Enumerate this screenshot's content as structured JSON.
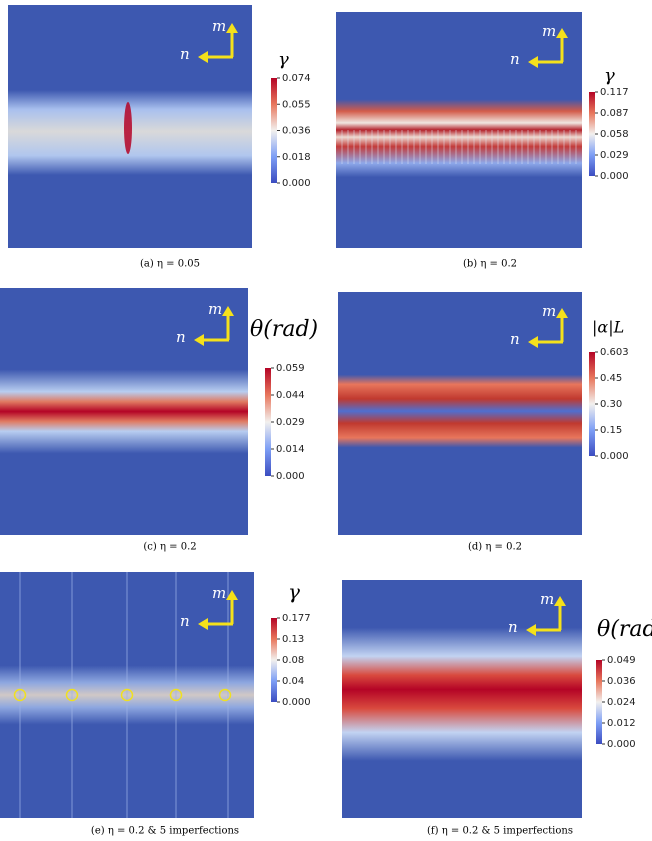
{
  "panels": [
    {
      "caption": "(a) η = 0.05",
      "colorbar": {
        "label": "γ",
        "ticks": [
          "0.074",
          "0.055",
          "0.036",
          "0.018",
          "0.000"
        ]
      },
      "arrows": {
        "n": "n",
        "m": "m"
      }
    },
    {
      "caption": "(b) η = 0.2",
      "colorbar": {
        "label": "γ",
        "ticks": [
          "0.117",
          "0.087",
          "0.058",
          "0.029",
          "0.000"
        ]
      },
      "arrows": {
        "n": "n",
        "m": "m"
      }
    },
    {
      "caption": "(c) η = 0.2",
      "colorbar": {
        "label": "θ(rad)",
        "ticks": [
          "0.059",
          "0.044",
          "0.029",
          "0.014",
          "0.000"
        ]
      },
      "arrows": {
        "n": "n",
        "m": "m"
      }
    },
    {
      "caption": "(d) η = 0.2",
      "colorbar": {
        "label": "|α|L",
        "ticks": [
          "0.603",
          "0.45",
          "0.30",
          "0.15",
          "0.000"
        ]
      },
      "arrows": {
        "n": "n",
        "m": "m"
      }
    },
    {
      "caption": "(e) η = 0.2 & 5 imperfections",
      "colorbar": {
        "label": "γ",
        "ticks": [
          "0.177",
          "0.13",
          "0.08",
          "0.04",
          "0.000"
        ]
      },
      "arrows": {
        "n": "n",
        "m": "m"
      }
    },
    {
      "caption": "(f) η = 0.2 & 5 imperfections",
      "colorbar": {
        "label": "θ(rad",
        "ticks": [
          "0.049",
          "0.036",
          "0.024",
          "0.012",
          "0.000"
        ]
      },
      "arrows": {
        "n": "n",
        "m": "m"
      }
    }
  ]
}
